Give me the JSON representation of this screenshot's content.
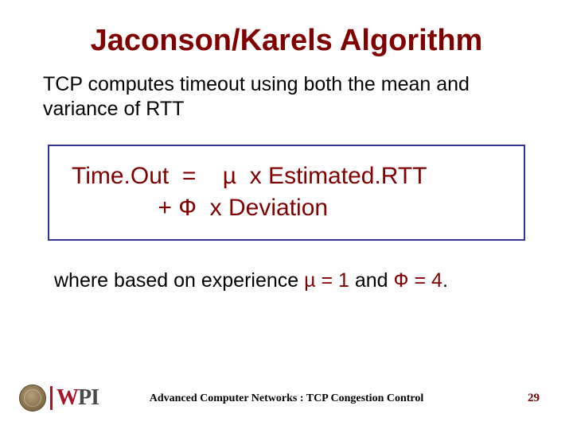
{
  "colors": {
    "title_color": "#800000",
    "body_color": "#000000",
    "box_border": "#333399",
    "logo_red": "#a8142a",
    "logo_gray": "#4a4a4a",
    "background": "#ffffff"
  },
  "typography": {
    "title_font": "Comic Sans MS",
    "title_size_pt": 38,
    "body_font": "Arial",
    "body_size_pt": 25,
    "formula_font": "Comic Sans MS",
    "formula_size_pt": 30,
    "footer_font": "Times New Roman",
    "footer_size_pt": 14
  },
  "title": "Jaconson/Karels Algorithm",
  "subtitle": "TCP computes timeout using both the mean and variance of RTT",
  "formula": {
    "line1": "Time.Out  =    µ  x Estimated.RTT",
    "line2": "             + Ф  x Deviation"
  },
  "note": {
    "prefix": "where based on experience ",
    "mu": "µ = 1",
    "mid": " and  ",
    "phi": "Ф = 4",
    "suffix": "."
  },
  "footer": {
    "text": "Advanced Computer Networks : TCP Congestion Control",
    "page": "29",
    "logo_text_w": "W",
    "logo_text_pi": "PI"
  }
}
